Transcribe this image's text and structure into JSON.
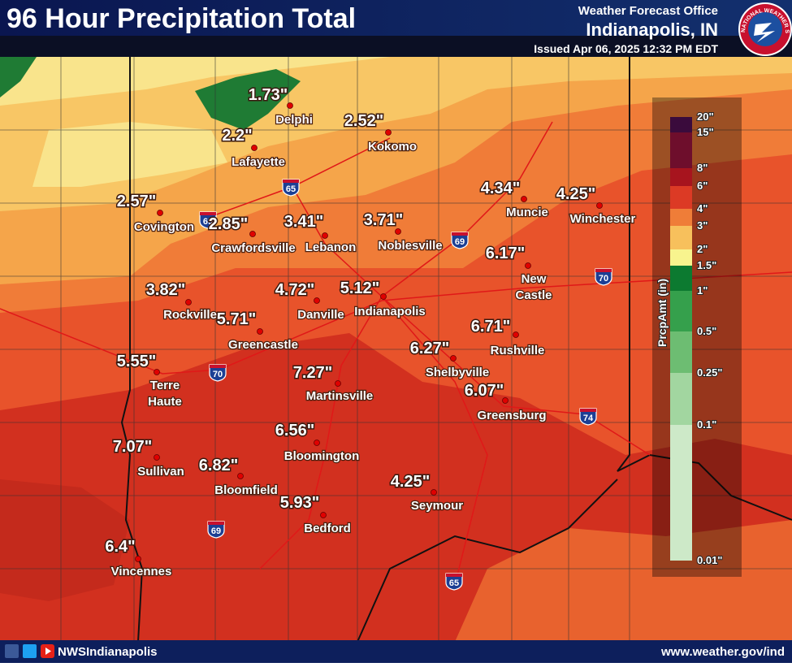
{
  "header": {
    "title": "96 Hour Precipitation Total",
    "office_line": "Weather Forecast Office",
    "office": "Indianapolis, IN",
    "issued": "Issued Apr 06, 2025 12:32 PM EDT",
    "logo_text": "NATIONAL WEATHER SERVICE"
  },
  "stations": [
    {
      "amount": "1.73\"",
      "name": "Delphi"
    },
    {
      "amount": "2.2\"",
      "name": "Lafayette"
    },
    {
      "amount": "2.52\"",
      "name": "Kokomo"
    },
    {
      "amount": "2.57\"",
      "name": "Covington"
    },
    {
      "amount": "2.85\"",
      "name": "Crawfordsville"
    },
    {
      "amount": "3.41\"",
      "name": "Lebanon"
    },
    {
      "amount": "3.71\"",
      "name": "Noblesville"
    },
    {
      "amount": "4.34\"",
      "name": "Muncie"
    },
    {
      "amount": "4.25\"",
      "name": "Winchester"
    },
    {
      "amount": "6.17\"",
      "name": [
        "New",
        "Castle"
      ]
    },
    {
      "amount": "3.82\"",
      "name": "Rockville"
    },
    {
      "amount": "5.71\"",
      "name": "Greencastle"
    },
    {
      "amount": "4.72\"",
      "name": "Danville"
    },
    {
      "amount": "5.12\"",
      "name": "Indianapolis"
    },
    {
      "amount": "6.71\"",
      "name": "Rushville"
    },
    {
      "amount": "6.27\"",
      "name": "Shelbyville"
    },
    {
      "amount": "5.55\"",
      "name": [
        "Terre",
        "Haute"
      ]
    },
    {
      "amount": "7.27\"",
      "name": "Martinsville"
    },
    {
      "amount": "6.07\"",
      "name": "Greensburg"
    },
    {
      "amount": "7.07\"",
      "name": "Sullivan"
    },
    {
      "amount": "6.56\"",
      "name": "Bloomington"
    },
    {
      "amount": "6.82\"",
      "name": "Bloomfield"
    },
    {
      "amount": "4.25\"",
      "name": "Seymour"
    },
    {
      "amount": "5.93\"",
      "name": "Bedford"
    },
    {
      "amount": "6.4\"",
      "name": "Vincennes"
    }
  ],
  "interstates": [
    "65",
    "69",
    "70",
    "69",
    "70",
    "74",
    "69",
    "65"
  ],
  "legend": {
    "title": "PrcpAmt (in)",
    "labels": [
      "20\"",
      "15\"",
      "8\"",
      "6\"",
      "4\"",
      "3\"",
      "2\"",
      "1.5\"",
      "1\"",
      "0.5\"",
      "0.25\"",
      "0.1\"",
      "0.01\""
    ]
  },
  "footer": {
    "handle": "NWSIndianapolis",
    "url": "www.weather.gov/ind"
  }
}
